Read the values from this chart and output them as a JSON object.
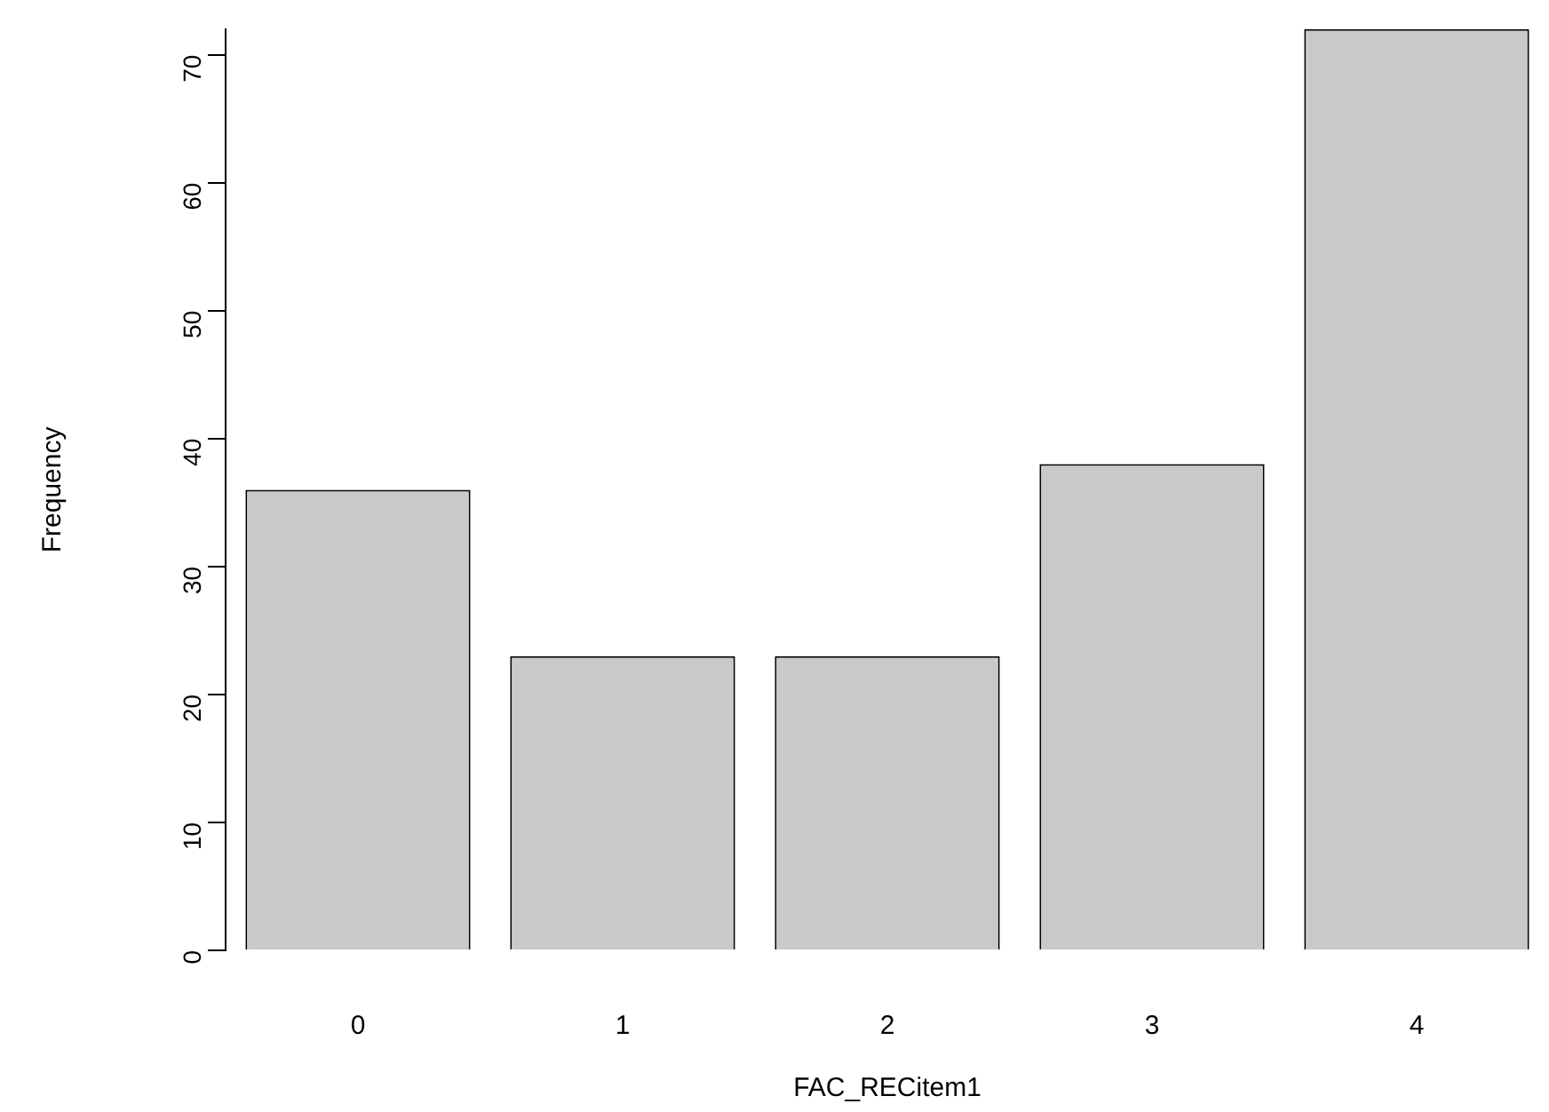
{
  "chart_data": {
    "type": "bar",
    "xlabel": "FAC_RECitem1",
    "ylabel": "Frequency",
    "categories": [
      "0",
      "1",
      "2",
      "3",
      "4"
    ],
    "values": [
      36,
      23,
      23,
      38,
      72
    ],
    "color": "#c8c9cb",
    "ylim": [
      0,
      72
    ],
    "yticks": [
      0,
      10,
      20,
      30,
      40,
      50,
      60,
      70
    ]
  }
}
